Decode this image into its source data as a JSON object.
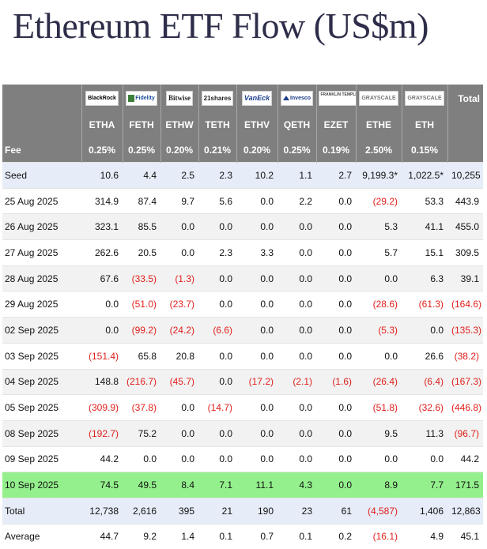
{
  "title": "Ethereum ETF Flow (US$m)",
  "logos": [
    {
      "name": "blackrock-logo",
      "text": "BlackRock",
      "cls": "blackrock"
    },
    {
      "name": "fidelity-logo",
      "text": "Fidelity",
      "cls": "fidelity"
    },
    {
      "name": "bitwise-logo",
      "text": "Bitwise",
      "cls": "bitwise"
    },
    {
      "name": "21shares-logo",
      "text": "21shares",
      "cls": "shares21"
    },
    {
      "name": "vaneck-logo",
      "text": "VanEck",
      "cls": "vaneck"
    },
    {
      "name": "invesco-logo",
      "text": "Invesco",
      "cls": "invesco"
    },
    {
      "name": "franklin-templeton-logo",
      "text": "FRANKLIN TEMPLETON",
      "cls": "franklin"
    },
    {
      "name": "grayscale-logo",
      "text": "GRAYSCALE",
      "cls": "grayscale"
    },
    {
      "name": "grayscale-logo",
      "text": "GRAYSCALE",
      "cls": "grayscale"
    }
  ],
  "total_header": "Total",
  "tickers": [
    "ETHA",
    "FETH",
    "ETHW",
    "TETH",
    "ETHV",
    "QETH",
    "EZET",
    "ETHE",
    "ETH"
  ],
  "fee_label": "Fee",
  "fees": [
    "0.25%",
    "0.25%",
    "0.20%",
    "0.21%",
    "0.20%",
    "0.25%",
    "0.19%",
    "2.50%",
    "0.15%"
  ],
  "rows": [
    {
      "label": "Seed",
      "style": "seed",
      "values": [
        "10.6",
        "4.4",
        "2.5",
        "2.3",
        "10.2",
        "1.1",
        "2.7",
        "9,199.3*",
        "1,022.5*"
      ],
      "total": "10,255"
    },
    {
      "label": "25 Aug 2025",
      "style": "plain",
      "values": [
        "314.9",
        "87.4",
        "9.7",
        "5.6",
        "0.0",
        "2.2",
        "0.0",
        "(29.2)",
        "53.3"
      ],
      "total": "443.9"
    },
    {
      "label": "26 Aug 2025",
      "style": "alt",
      "values": [
        "323.1",
        "85.5",
        "0.0",
        "0.0",
        "0.0",
        "0.0",
        "0.0",
        "5.3",
        "41.1"
      ],
      "total": "455.0"
    },
    {
      "label": "27 Aug 2025",
      "style": "plain",
      "values": [
        "262.6",
        "20.5",
        "0.0",
        "2.3",
        "3.3",
        "0.0",
        "0.0",
        "5.7",
        "15.1"
      ],
      "total": "309.5"
    },
    {
      "label": "28 Aug 2025",
      "style": "alt",
      "values": [
        "67.6",
        "(33.5)",
        "(1.3)",
        "0.0",
        "0.0",
        "0.0",
        "0.0",
        "0.0",
        "6.3"
      ],
      "total": "39.1"
    },
    {
      "label": "29 Aug 2025",
      "style": "plain",
      "values": [
        "0.0",
        "(51.0)",
        "(23.7)",
        "0.0",
        "0.0",
        "0.0",
        "0.0",
        "(28.6)",
        "(61.3)"
      ],
      "total": "(164.6)"
    },
    {
      "label": "02 Sep 2025",
      "style": "alt",
      "values": [
        "0.0",
        "(99.2)",
        "(24.2)",
        "(6.6)",
        "0.0",
        "0.0",
        "0.0",
        "(5.3)",
        "0.0"
      ],
      "total": "(135.3)"
    },
    {
      "label": "03 Sep 2025",
      "style": "plain",
      "values": [
        "(151.4)",
        "65.8",
        "20.8",
        "0.0",
        "0.0",
        "0.0",
        "0.0",
        "0.0",
        "26.6"
      ],
      "total": "(38.2)"
    },
    {
      "label": "04 Sep 2025",
      "style": "alt",
      "values": [
        "148.8",
        "(216.7)",
        "(45.7)",
        "0.0",
        "(17.2)",
        "(2.1)",
        "(1.6)",
        "(26.4)",
        "(6.4)"
      ],
      "total": "(167.3)"
    },
    {
      "label": "05 Sep 2025",
      "style": "plain",
      "values": [
        "(309.9)",
        "(37.8)",
        "0.0",
        "(14.7)",
        "0.0",
        "0.0",
        "0.0",
        "(51.8)",
        "(32.6)"
      ],
      "total": "(446.8)"
    },
    {
      "label": "08 Sep 2025",
      "style": "alt",
      "values": [
        "(192.7)",
        "75.2",
        "0.0",
        "0.0",
        "0.0",
        "0.0",
        "0.0",
        "9.5",
        "11.3"
      ],
      "total": "(96.7)"
    },
    {
      "label": "09 Sep 2025",
      "style": "plain",
      "values": [
        "44.2",
        "0.0",
        "0.0",
        "0.0",
        "0.0",
        "0.0",
        "0.0",
        "0.0",
        "0.0"
      ],
      "total": "44.2"
    },
    {
      "label": "10 Sep 2025",
      "style": "highlight",
      "values": [
        "74.5",
        "49.5",
        "8.4",
        "7.1",
        "11.1",
        "4.3",
        "0.0",
        "8.9",
        "7.7"
      ],
      "total": "171.5"
    },
    {
      "label": "Total",
      "style": "summary",
      "values": [
        "12,738",
        "2,616",
        "395",
        "21",
        "190",
        "23",
        "61",
        "(4,587)",
        "1,406"
      ],
      "total": "12,863"
    },
    {
      "label": "Average",
      "style": "plain",
      "values": [
        "44.7",
        "9.2",
        "1.4",
        "0.1",
        "0.7",
        "0.1",
        "0.2",
        "(16.1)",
        "4.9"
      ],
      "total": "45.1"
    }
  ],
  "colors": {
    "header_bg": "#7f7f7f",
    "highlight_row": "#94f08c",
    "negative": "#e0201c",
    "title": "#2e2e4a"
  }
}
